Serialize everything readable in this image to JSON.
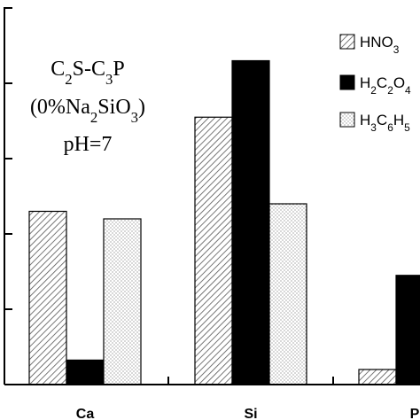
{
  "chart_data": {
    "type": "bar",
    "categories": [
      "Ca",
      "Si",
      "P"
    ],
    "series": [
      {
        "name": "HNO3",
        "name_html": "HNO<tspan baseline-shift=\"sub\" font-size=\"70%\">3</tspan>",
        "values": [
          46,
          71,
          4
        ],
        "fill": "hatch-diagonal"
      },
      {
        "name": "H2C2O4",
        "name_html": "H<tspan baseline-shift=\"sub\" font-size=\"70%\">2</tspan>C<tspan baseline-shift=\"sub\" font-size=\"70%\">2</tspan>O<tspan baseline-shift=\"sub\" font-size=\"70%\">4</tspan>",
        "values": [
          6.5,
          86,
          29
        ],
        "fill": "solid-black"
      },
      {
        "name": "H3C6H5",
        "name_html": "H<tspan baseline-shift=\"sub\" font-size=\"70%\">3</tspan>C<tspan baseline-shift=\"sub\" font-size=\"70%\">6</tspan>H<tspan baseline-shift=\"sub\" font-size=\"70%\">5</tspan>",
        "values": [
          44,
          48,
          null
        ],
        "fill": "dotted"
      }
    ],
    "ylim": [
      0,
      100
    ],
    "yticks": [
      0,
      20,
      40,
      60,
      80,
      100
    ],
    "annotations": {
      "line1": "C2S-C3P",
      "line1_html": "C<tspan baseline-shift=\"sub\" font-size=\"70%\">2</tspan>S-C<tspan baseline-shift=\"sub\" font-size=\"70%\">3</tspan>P",
      "line2": "(0%Na2SiO3)",
      "line2_html": "(0%Na<tspan baseline-shift=\"sub\" font-size=\"70%\">2</tspan>SiO<tspan baseline-shift=\"sub\" font-size=\"70%\">3</tspan>)",
      "line3": "pH=7"
    },
    "legend_position": "top-right",
    "grid": false,
    "colors": {
      "axis": "#000000",
      "bar_solid": "#000000",
      "hatch_line": "#555555",
      "dot": "#777777"
    }
  }
}
